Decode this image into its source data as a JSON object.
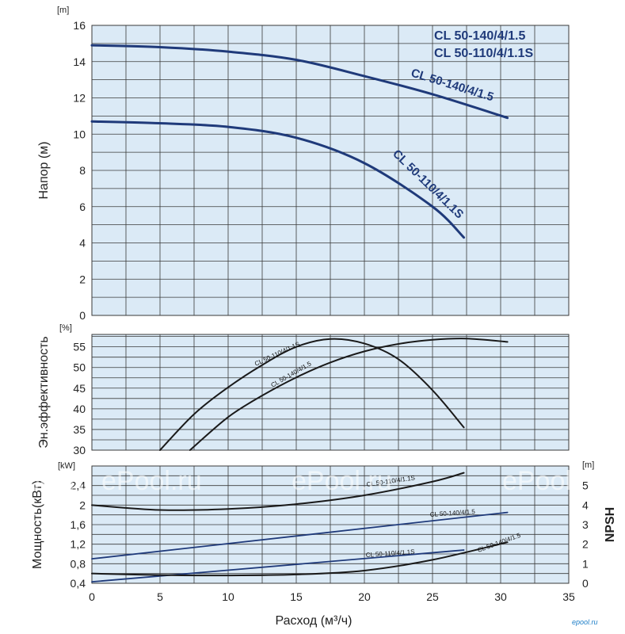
{
  "chart_data": [
    {
      "type": "line",
      "ylabel": "Напор (м)",
      "yunit": "[m]",
      "xlim": [
        0,
        35
      ],
      "ylim": [
        0,
        16
      ],
      "yticks": [
        0,
        2,
        4,
        6,
        8,
        10,
        12,
        14,
        16
      ],
      "legend": [
        "CL 50-140/4/1.5",
        "CL 50-110/4/1.1S"
      ],
      "legend_position": "top-right",
      "grid": true,
      "series": [
        {
          "name": "CL 50-140/4/1.5",
          "x": [
            0,
            5,
            10,
            15,
            20,
            25,
            30.5
          ],
          "y": [
            14.9,
            14.8,
            14.55,
            14.1,
            13.2,
            12.2,
            10.9
          ]
        },
        {
          "name": "CL 50-110/4/1.1S",
          "x": [
            0,
            5,
            10,
            15,
            20,
            25,
            27.3
          ],
          "y": [
            10.7,
            10.6,
            10.4,
            9.8,
            8.4,
            6.0,
            4.3
          ]
        }
      ]
    },
    {
      "type": "line",
      "ylabel": "Эн.эффективность",
      "yunit": "[%]",
      "xlim": [
        0,
        35
      ],
      "ylim": [
        30,
        58
      ],
      "yticks": [
        30,
        35,
        40,
        45,
        50,
        55
      ],
      "grid": true,
      "series": [
        {
          "name": "CL 50-110/4/1.1S",
          "x": [
            5,
            7.5,
            10,
            12.5,
            15,
            17.5,
            20,
            22.5,
            25,
            27.3
          ],
          "y": [
            30,
            38.7,
            45.2,
            50.6,
            55,
            56.9,
            55.8,
            52,
            44.5,
            35.5
          ]
        },
        {
          "name": "CL 50-140/4/1.5",
          "x": [
            7.2,
            10,
            12.5,
            15,
            17.5,
            20,
            22.5,
            25,
            27.5,
            30.5
          ],
          "y": [
            30,
            38,
            43.2,
            47.6,
            51.2,
            53.9,
            55.7,
            56.7,
            57,
            56.2
          ]
        }
      ]
    },
    {
      "type": "line",
      "ylabel": "Мощность(кВт)",
      "yunit": "[kW]",
      "y2label": "NPSH",
      "y2unit": "[m]",
      "xlabel": "Расход (м³/ч)",
      "xlim": [
        0,
        35
      ],
      "xticks": [
        0,
        5,
        10,
        15,
        20,
        25,
        30,
        35
      ],
      "ylim": [
        0.4,
        2.8
      ],
      "yticks": [
        0.4,
        0.8,
        1.2,
        1.6,
        2.0,
        2.4
      ],
      "yticklabels": [
        "0,4",
        "0,8",
        "1,2",
        "1,6",
        "2",
        "2,4"
      ],
      "y2lim": [
        0,
        6
      ],
      "y2ticks": [
        0,
        1,
        2,
        3,
        4,
        5
      ],
      "grid": true,
      "series": [
        {
          "name": "CL 50-110/4/1.1S",
          "quantity": "NPSH",
          "x": [
            0,
            5,
            10,
            15,
            20,
            25,
            27.3
          ],
          "y": [
            4.0,
            3.75,
            3.8,
            4.05,
            4.5,
            5.2,
            5.65
          ]
        },
        {
          "name": "CL 50-140/4/1.5",
          "quantity": "power",
          "x": [
            0,
            30.5
          ],
          "y": [
            0.9,
            1.85
          ]
        },
        {
          "name": "CL 50-110/4/1.1S",
          "quantity": "power",
          "x": [
            0,
            27.3
          ],
          "y": [
            0.43,
            1.08
          ]
        },
        {
          "name": "CL 50-140/4/1.5",
          "quantity": "NPSH",
          "x": [
            0,
            5,
            10,
            15,
            20,
            25,
            30.5
          ],
          "y": [
            0.5,
            0.42,
            0.4,
            0.45,
            0.65,
            1.2,
            2.1
          ]
        }
      ]
    }
  ],
  "watermarks": [
    "ePool.ru",
    "ePool.ru",
    "ePool.ru",
    "ePool.ru",
    "ePool.ru"
  ],
  "logo": "epool.ru",
  "colors": {
    "panel": "#dbeaf6",
    "grid": "#3a3a3a",
    "curve_dark": "#1f3a7a",
    "curve_black": "#1a1a1a"
  }
}
